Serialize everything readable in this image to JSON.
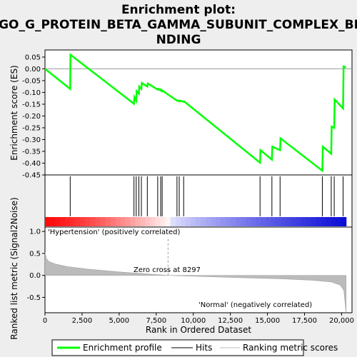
{
  "chart_data": {
    "type": "line",
    "title_lines": [
      "Enrichment plot:",
      "GO_G_PROTEIN_BETA_GAMMA_SUBUNIT_COMPLEX_BI",
      "NDING"
    ],
    "es_panel": {
      "ylabel": "Enrichment score (ES)",
      "ylim": [
        -0.45,
        0.08
      ],
      "yticks": [
        "0.05",
        "0.00",
        "-0.05",
        "-0.10",
        "-0.15",
        "-0.20",
        "-0.25",
        "-0.30",
        "-0.35",
        "-0.40",
        "-0.45"
      ],
      "ytick_values": [
        0.05,
        0.0,
        -0.05,
        -0.1,
        -0.15,
        -0.2,
        -0.25,
        -0.3,
        -0.35,
        -0.4,
        -0.45
      ],
      "series": {
        "name": "Enrichment profile",
        "color": "#00ff00",
        "x": [
          0,
          1700,
          1720,
          6000,
          6030,
          6150,
          6180,
          6330,
          6360,
          6500,
          6530,
          6900,
          6930,
          7600,
          7630,
          7800,
          7830,
          7900,
          7930,
          8900,
          8930,
          9050,
          9080,
          9350,
          9380,
          14500,
          14530,
          15300,
          15330,
          15850,
          15880,
          18700,
          18730,
          19300,
          19330,
          19500,
          19530,
          20100,
          20130,
          20300
        ],
        "y": [
          0.0,
          -0.085,
          0.06,
          -0.148,
          -0.12,
          -0.135,
          -0.095,
          -0.105,
          -0.075,
          -0.085,
          -0.06,
          -0.075,
          -0.062,
          -0.088,
          -0.085,
          -0.092,
          -0.088,
          -0.095,
          -0.093,
          -0.135,
          -0.133,
          -0.138,
          -0.135,
          -0.14,
          -0.138,
          -0.398,
          -0.345,
          -0.385,
          -0.33,
          -0.345,
          -0.295,
          -0.432,
          -0.33,
          -0.36,
          -0.245,
          -0.25,
          -0.13,
          -0.168,
          0.01,
          0.006
        ]
      }
    },
    "hits": [
      1700,
      6000,
      6150,
      6330,
      6500,
      6900,
      7600,
      7800,
      7900,
      8900,
      9050,
      9350,
      14500,
      15300,
      15850,
      18700,
      19300,
      19500,
      20100
    ],
    "rank_panel": {
      "ylabel": "Ranked list metric (Signal2Noise)",
      "ylim": [
        -0.85,
        1.1
      ],
      "yticks": [
        "1.0",
        "0.5",
        "0.0",
        "-0.5"
      ],
      "ytick_values": [
        1.0,
        0.5,
        0.0,
        -0.5
      ],
      "xlabel": "Rank in Ordered Dataset",
      "xlim": [
        0,
        20700
      ],
      "xticks": [
        "0",
        "2,500",
        "5,000",
        "7,500",
        "10,000",
        "12,500",
        "15,000",
        "17,500",
        "20,000"
      ],
      "xtick_values": [
        0,
        2500,
        5000,
        7500,
        10000,
        12500,
        15000,
        17500,
        20000
      ],
      "zero_cross_label": "Zero cross at 8297",
      "zero_cross": 8297,
      "positive_label": "'Hypertension' (positively correlated)",
      "negative_label": "'Normal' (negatively correlated)",
      "profile_x": [
        0,
        100,
        300,
        700,
        1500,
        3000,
        5000,
        7000,
        8297,
        10000,
        13000,
        16000,
        18000,
        19300,
        19900,
        20150,
        20300
      ],
      "profile_y": [
        0.52,
        0.38,
        0.31,
        0.26,
        0.2,
        0.14,
        0.08,
        0.03,
        0.0,
        -0.02,
        -0.05,
        -0.08,
        -0.11,
        -0.15,
        -0.22,
        -0.35,
        -0.85
      ],
      "color": "#bbbbbb"
    },
    "legend": [
      "Enrichment profile",
      "Hits",
      "Ranking metric scores"
    ],
    "colors": {
      "enrichment": "#00ff00",
      "hits": "#000000",
      "ranking": "#bbbbbb",
      "neg_text": "#0000cc",
      "pos_text": "#cc0000"
    }
  }
}
